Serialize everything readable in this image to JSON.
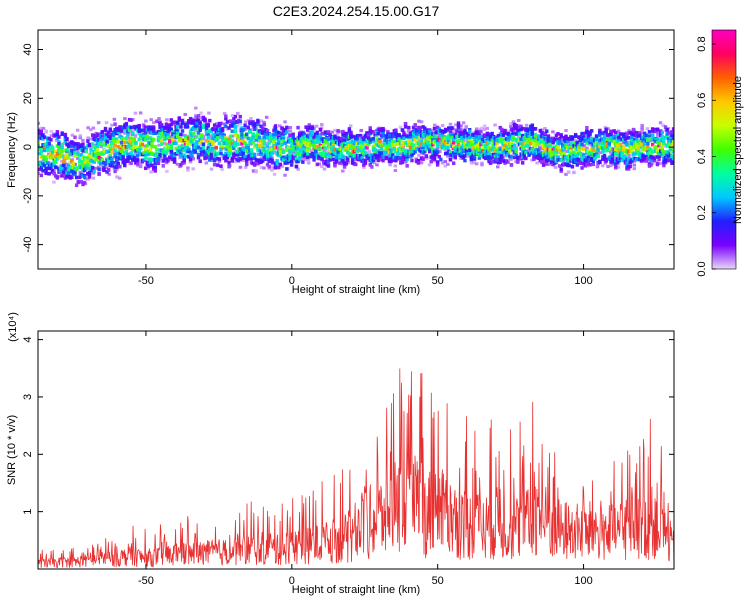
{
  "title": "C2E3.2024.254.15.00.G17",
  "chart_data": [
    {
      "type": "heatmap",
      "xlabel": "Height of straight line (km)",
      "ylabel": "Frequency (Hz)",
      "xlim": [
        -87,
        131
      ],
      "ylim": [
        -50,
        48
      ],
      "xticks": [
        -50,
        0,
        50,
        100
      ],
      "yticks": [
        -40,
        -20,
        0,
        20,
        40
      ],
      "ridge_frequency": [
        [
          -85,
          -2
        ],
        [
          -78,
          -4
        ],
        [
          -72,
          -6
        ],
        [
          -66,
          -2
        ],
        [
          -60,
          0
        ],
        [
          -55,
          2
        ],
        [
          -50,
          0
        ],
        [
          -45,
          1
        ],
        [
          -40,
          3
        ],
        [
          -35,
          2
        ],
        [
          -30,
          4
        ],
        [
          -25,
          1
        ],
        [
          -20,
          3
        ],
        [
          -15,
          2
        ],
        [
          -10,
          1
        ],
        [
          -5,
          0
        ],
        [
          0,
          -1
        ],
        [
          5,
          1
        ],
        [
          10,
          0
        ],
        [
          15,
          -1
        ],
        [
          20,
          0
        ],
        [
          25,
          -1
        ],
        [
          30,
          1
        ],
        [
          35,
          0
        ],
        [
          40,
          1
        ],
        [
          45,
          2
        ],
        [
          50,
          1
        ],
        [
          55,
          2
        ],
        [
          60,
          1
        ],
        [
          65,
          0
        ],
        [
          70,
          0
        ],
        [
          75,
          1
        ],
        [
          80,
          2
        ],
        [
          85,
          1
        ],
        [
          90,
          -1
        ],
        [
          95,
          -2
        ],
        [
          100,
          -1
        ],
        [
          105,
          0
        ],
        [
          110,
          0
        ],
        [
          115,
          -1
        ],
        [
          120,
          0
        ],
        [
          125,
          1
        ],
        [
          130,
          0
        ]
      ],
      "colorbar": {
        "label": "Normalized spectral amplitude",
        "range": [
          0.0,
          0.85
        ],
        "ticks": [
          "0.0",
          "0.2",
          "0.4",
          "0.6",
          "0.8"
        ],
        "colors": [
          "#e8d6f8",
          "#7a00ff",
          "#2020ff",
          "#00c8ff",
          "#00ffa0",
          "#40ff00",
          "#c8ff00",
          "#ffc800",
          "#ff6000",
          "#ff0060",
          "#ff00c0"
        ]
      }
    },
    {
      "type": "line",
      "xlabel": "Height of straight line (km)",
      "ylabel": "SNR (10 * v/v)",
      "scale_label": "(x10⁴)",
      "xlim": [
        -87,
        131
      ],
      "ylim": [
        0,
        4.15
      ],
      "xticks": [
        -50,
        0,
        50,
        100
      ],
      "yticks": [
        1,
        2,
        3,
        4
      ],
      "series": [
        {
          "color": "#e83030",
          "envelope": [
            [
              -87,
              0.35
            ],
            [
              -75,
              0.45
            ],
            [
              -65,
              0.6
            ],
            [
              -55,
              0.8
            ],
            [
              -50,
              0.7
            ],
            [
              -40,
              0.9
            ],
            [
              -30,
              1.0
            ],
            [
              -20,
              1.1
            ],
            [
              -10,
              1.3
            ],
            [
              -5,
              1.2
            ],
            [
              0,
              1.4
            ],
            [
              10,
              1.6
            ],
            [
              20,
              2.0
            ],
            [
              25,
              2.8
            ],
            [
              30,
              3.2
            ],
            [
              35,
              3.9
            ],
            [
              40,
              3.6
            ],
            [
              45,
              3.5
            ],
            [
              50,
              3.6
            ],
            [
              55,
              3.2
            ],
            [
              60,
              2.8
            ],
            [
              65,
              2.6
            ],
            [
              70,
              2.9
            ],
            [
              75,
              2.6
            ],
            [
              80,
              2.7
            ],
            [
              85,
              3.3
            ],
            [
              90,
              2.5
            ],
            [
              95,
              2.4
            ],
            [
              100,
              2.3
            ],
            [
              105,
              2.5
            ],
            [
              110,
              2.3
            ],
            [
              115,
              2.6
            ],
            [
              120,
              2.5
            ],
            [
              125,
              3.1
            ],
            [
              131,
              1.3
            ]
          ]
        }
      ]
    }
  ]
}
